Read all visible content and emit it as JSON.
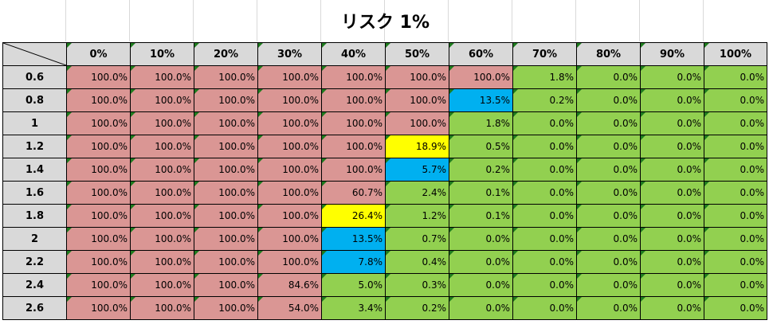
{
  "title": "リスク 1%",
  "columns": [
    "0%",
    "10%",
    "20%",
    "30%",
    "40%",
    "50%",
    "60%",
    "70%",
    "80%",
    "90%",
    "100%"
  ],
  "rows": [
    {
      "label": "0.6",
      "values": [
        "100.0%",
        "100.0%",
        "100.0%",
        "100.0%",
        "100.0%",
        "100.0%",
        "100.0%",
        "1.8%",
        "0.0%",
        "0.0%",
        "0.0%"
      ],
      "colors": [
        "red",
        "red",
        "red",
        "red",
        "red",
        "red",
        "red",
        "green",
        "green",
        "green",
        "green"
      ]
    },
    {
      "label": "0.8",
      "values": [
        "100.0%",
        "100.0%",
        "100.0%",
        "100.0%",
        "100.0%",
        "100.0%",
        "13.5%",
        "0.2%",
        "0.0%",
        "0.0%",
        "0.0%"
      ],
      "colors": [
        "red",
        "red",
        "red",
        "red",
        "red",
        "red",
        "blue",
        "green",
        "green",
        "green",
        "green"
      ]
    },
    {
      "label": "1",
      "values": [
        "100.0%",
        "100.0%",
        "100.0%",
        "100.0%",
        "100.0%",
        "100.0%",
        "1.8%",
        "0.0%",
        "0.0%",
        "0.0%",
        "0.0%"
      ],
      "colors": [
        "red",
        "red",
        "red",
        "red",
        "red",
        "red",
        "green",
        "green",
        "green",
        "green",
        "green"
      ]
    },
    {
      "label": "1.2",
      "values": [
        "100.0%",
        "100.0%",
        "100.0%",
        "100.0%",
        "100.0%",
        "18.9%",
        "0.5%",
        "0.0%",
        "0.0%",
        "0.0%",
        "0.0%"
      ],
      "colors": [
        "red",
        "red",
        "red",
        "red",
        "red",
        "yellow",
        "green",
        "green",
        "green",
        "green",
        "green"
      ]
    },
    {
      "label": "1.4",
      "values": [
        "100.0%",
        "100.0%",
        "100.0%",
        "100.0%",
        "100.0%",
        "5.7%",
        "0.2%",
        "0.0%",
        "0.0%",
        "0.0%",
        "0.0%"
      ],
      "colors": [
        "red",
        "red",
        "red",
        "red",
        "red",
        "blue",
        "green",
        "green",
        "green",
        "green",
        "green"
      ]
    },
    {
      "label": "1.6",
      "values": [
        "100.0%",
        "100.0%",
        "100.0%",
        "100.0%",
        "60.7%",
        "2.4%",
        "0.1%",
        "0.0%",
        "0.0%",
        "0.0%",
        "0.0%"
      ],
      "colors": [
        "red",
        "red",
        "red",
        "red",
        "red",
        "green",
        "green",
        "green",
        "green",
        "green",
        "green"
      ]
    },
    {
      "label": "1.8",
      "values": [
        "100.0%",
        "100.0%",
        "100.0%",
        "100.0%",
        "26.4%",
        "1.2%",
        "0.1%",
        "0.0%",
        "0.0%",
        "0.0%",
        "0.0%"
      ],
      "colors": [
        "red",
        "red",
        "red",
        "red",
        "yellow",
        "green",
        "green",
        "green",
        "green",
        "green",
        "green"
      ]
    },
    {
      "label": "2",
      "values": [
        "100.0%",
        "100.0%",
        "100.0%",
        "100.0%",
        "13.5%",
        "0.7%",
        "0.0%",
        "0.0%",
        "0.0%",
        "0.0%",
        "0.0%"
      ],
      "colors": [
        "red",
        "red",
        "red",
        "red",
        "blue",
        "green",
        "green",
        "green",
        "green",
        "green",
        "green"
      ]
    },
    {
      "label": "2.2",
      "values": [
        "100.0%",
        "100.0%",
        "100.0%",
        "100.0%",
        "7.8%",
        "0.4%",
        "0.0%",
        "0.0%",
        "0.0%",
        "0.0%",
        "0.0%"
      ],
      "colors": [
        "red",
        "red",
        "red",
        "red",
        "blue",
        "green",
        "green",
        "green",
        "green",
        "green",
        "green"
      ]
    },
    {
      "label": "2.4",
      "values": [
        "100.0%",
        "100.0%",
        "100.0%",
        "84.6%",
        "5.0%",
        "0.3%",
        "0.0%",
        "0.0%",
        "0.0%",
        "0.0%",
        "0.0%"
      ],
      "colors": [
        "red",
        "red",
        "red",
        "red",
        "green",
        "green",
        "green",
        "green",
        "green",
        "green",
        "green"
      ]
    },
    {
      "label": "2.6",
      "values": [
        "100.0%",
        "100.0%",
        "100.0%",
        "54.0%",
        "3.4%",
        "0.2%",
        "0.0%",
        "0.0%",
        "0.0%",
        "0.0%",
        "0.0%"
      ],
      "colors": [
        "red",
        "red",
        "red",
        "red",
        "green",
        "green",
        "green",
        "green",
        "green",
        "green",
        "green"
      ]
    }
  ],
  "palette": {
    "red": "#da9694",
    "green": "#92d050",
    "blue": "#00b0f0",
    "yellow": "#ffff00",
    "header": "#d9d9d9"
  }
}
